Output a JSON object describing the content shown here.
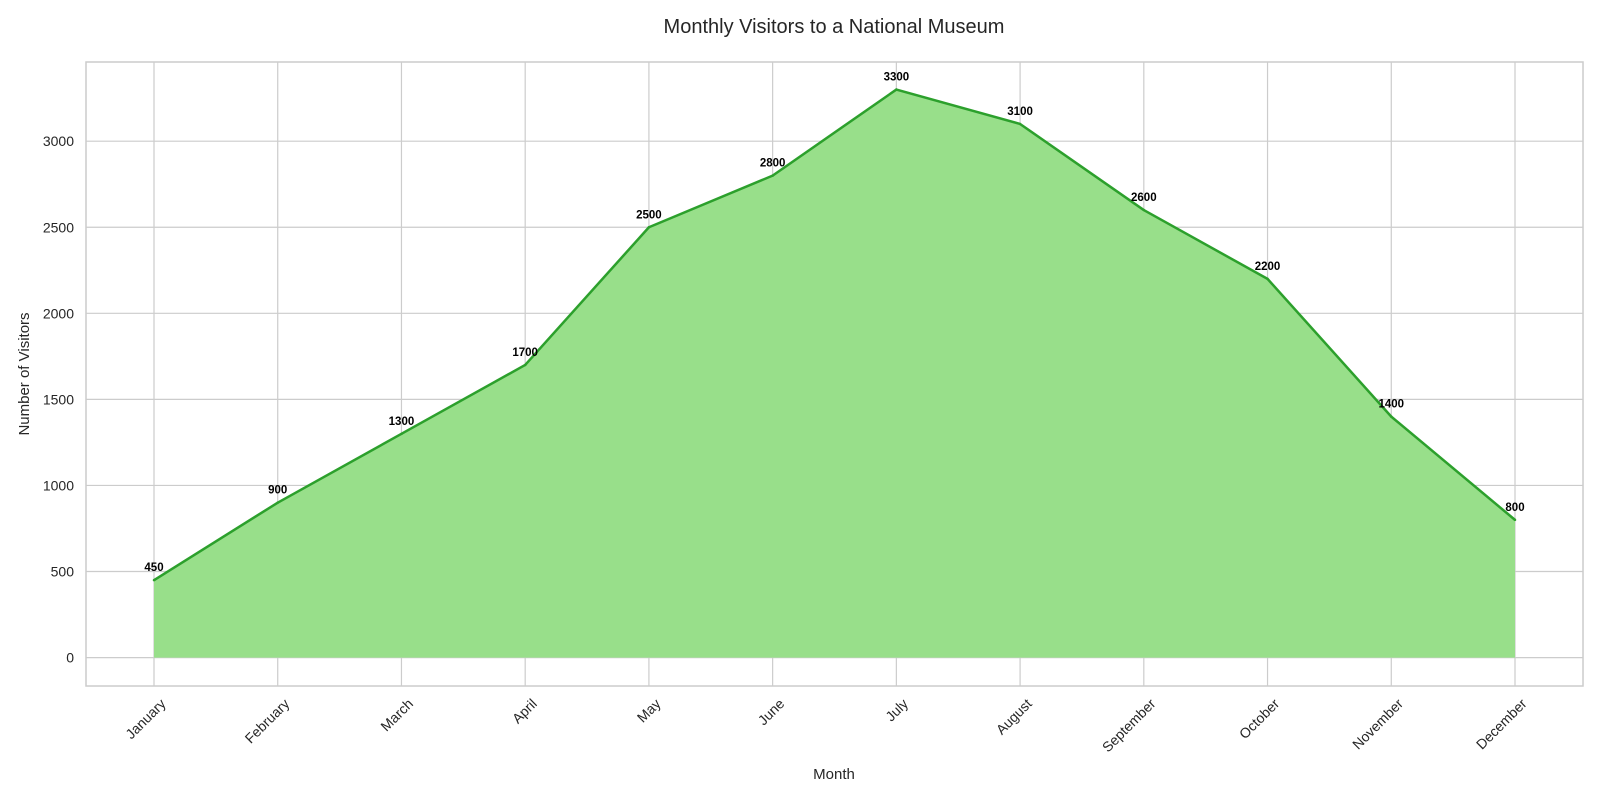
{
  "chart_data": {
    "type": "area",
    "title": "Monthly Visitors to a National Museum",
    "xlabel": "Month",
    "ylabel": "Number of Visitors",
    "categories": [
      "January",
      "February",
      "March",
      "April",
      "May",
      "June",
      "July",
      "August",
      "September",
      "October",
      "November",
      "December"
    ],
    "series": [
      {
        "values": [
          450,
          900,
          1300,
          1700,
          2500,
          2800,
          3300,
          3100,
          2600,
          2200,
          1400,
          800
        ],
        "line_color": "#2ca02c",
        "fill_color": "#98df8a"
      }
    ],
    "data_labels": [
      "450",
      "900",
      "1300",
      "1700",
      "2500",
      "2800",
      "3300",
      "3100",
      "2600",
      "2200",
      "1400",
      "800"
    ],
    "yticks": [
      0,
      500,
      1000,
      1500,
      2000,
      2500,
      3000
    ],
    "ytick_labels": [
      "0",
      "500",
      "1000",
      "1500",
      "2000",
      "2500",
      "3000"
    ],
    "ylim": [
      -165,
      3460
    ],
    "grid": true,
    "x_tick_rotation": "45 degrees"
  }
}
